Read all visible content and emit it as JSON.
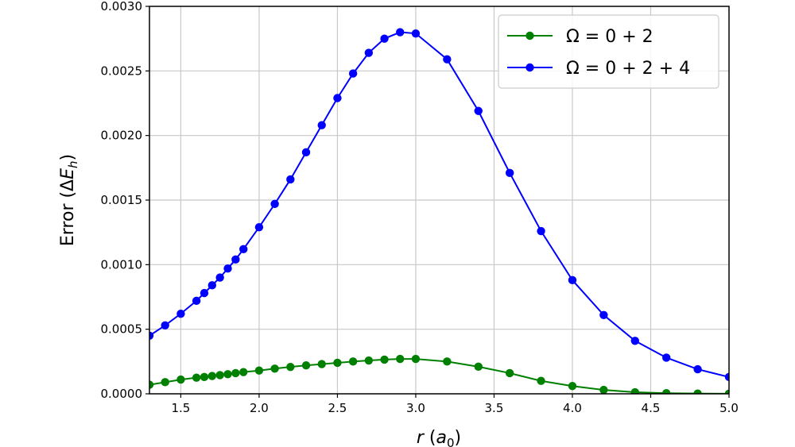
{
  "chart_data": {
    "type": "line",
    "xlabel": "r (a0)",
    "ylabel": "Error (ΔEh)",
    "xlim": [
      1.3,
      5.0
    ],
    "ylim": [
      0.0,
      0.003
    ],
    "xticks": [
      "1.5",
      "2.0",
      "2.5",
      "3.0",
      "3.5",
      "4.0",
      "4.5",
      "5.0"
    ],
    "yticks": [
      "0.0000",
      "0.0005",
      "0.0010",
      "0.0015",
      "0.0020",
      "0.0025",
      "0.0030"
    ],
    "grid": true,
    "legend_position": "top-right",
    "series": [
      {
        "name": "Ω = 0 + 2",
        "color": "#008000",
        "marker": "circle",
        "x": [
          1.3,
          1.4,
          1.5,
          1.6,
          1.65,
          1.7,
          1.75,
          1.8,
          1.85,
          1.9,
          2.0,
          2.1,
          2.2,
          2.3,
          2.4,
          2.5,
          2.6,
          2.7,
          2.8,
          2.9,
          3.0,
          3.2,
          3.4,
          3.6,
          3.8,
          4.0,
          4.2,
          4.4,
          4.6,
          4.8,
          5.0
        ],
        "y": [
          7e-05,
          9e-05,
          0.00011,
          0.000125,
          0.00013,
          0.000138,
          0.000145,
          0.000152,
          0.00016,
          0.000168,
          0.00018,
          0.000195,
          0.000208,
          0.00022,
          0.00023,
          0.00024,
          0.00025,
          0.000258,
          0.000265,
          0.00027,
          0.00027,
          0.00025,
          0.00021,
          0.00016,
          0.0001,
          6e-05,
          3e-05,
          1.2e-05,
          5e-06,
          2e-06,
          1e-06
        ]
      },
      {
        "name": "Ω = 0 + 2 + 4",
        "color": "#0000ff",
        "marker": "circle",
        "x": [
          1.3,
          1.4,
          1.5,
          1.6,
          1.65,
          1.7,
          1.75,
          1.8,
          1.85,
          1.9,
          2.0,
          2.1,
          2.2,
          2.3,
          2.4,
          2.5,
          2.6,
          2.7,
          2.8,
          2.9,
          3.0,
          3.2,
          3.4,
          3.6,
          3.8,
          4.0,
          4.2,
          4.4,
          4.6,
          4.8,
          5.0
        ],
        "y": [
          0.00045,
          0.00053,
          0.00062,
          0.00072,
          0.00078,
          0.00084,
          0.0009,
          0.00097,
          0.00104,
          0.00112,
          0.00129,
          0.00147,
          0.00166,
          0.00187,
          0.00208,
          0.00229,
          0.00248,
          0.00264,
          0.00275,
          0.0028,
          0.00279,
          0.00259,
          0.00219,
          0.00171,
          0.00126,
          0.00088,
          0.00061,
          0.00041,
          0.00028,
          0.00019,
          0.00013
        ]
      }
    ]
  }
}
